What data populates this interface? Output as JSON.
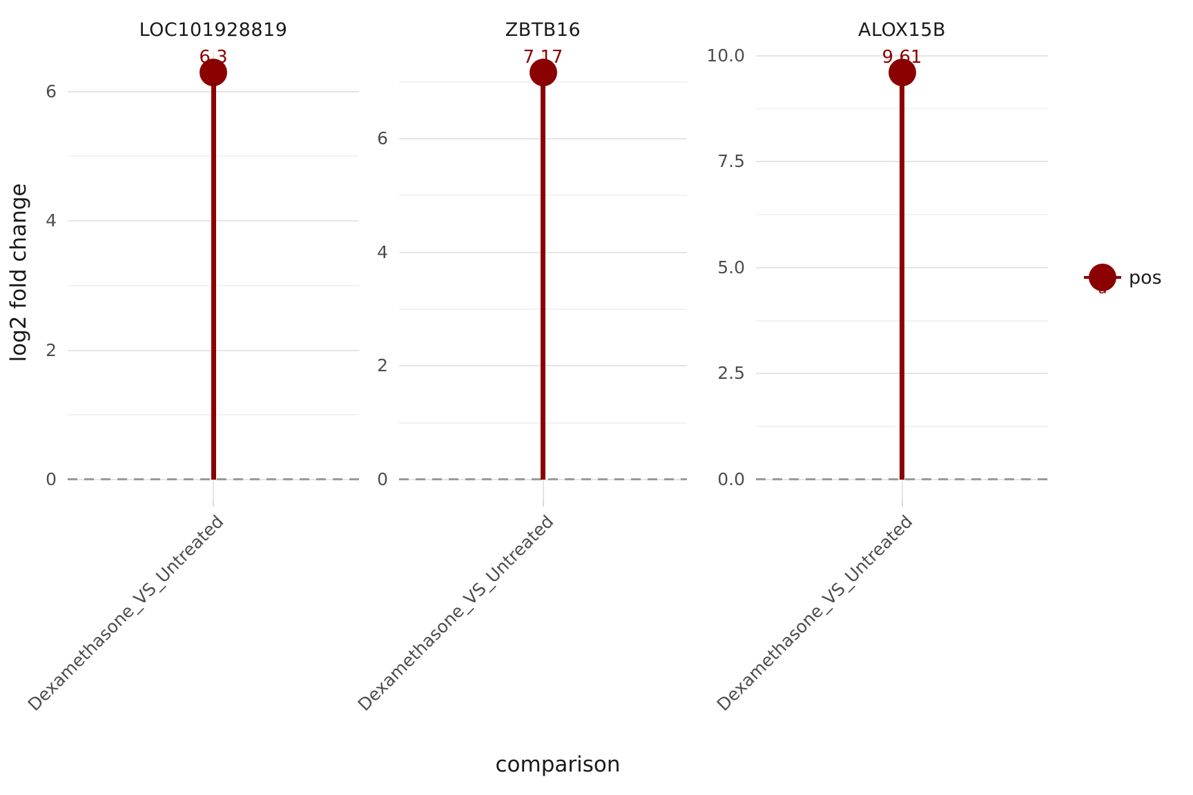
{
  "chart_data": {
    "type": "lollipop",
    "title": "",
    "xlabel": "comparison",
    "ylabel": "log2 fold change",
    "category_label": "Dexamethasone_VS_Untreated",
    "facets": [
      {
        "title": "LOC101928819",
        "value": 6.3,
        "value_label": "6.3",
        "yticks": [
          {
            "v": 0,
            "t": "0"
          },
          {
            "v": 2,
            "t": "2"
          },
          {
            "v": 4,
            "t": "4"
          },
          {
            "v": 6,
            "t": "6"
          }
        ]
      },
      {
        "title": "ZBTB16",
        "value": 7.17,
        "value_label": "7.17",
        "yticks": [
          {
            "v": 0,
            "t": "0"
          },
          {
            "v": 2,
            "t": "2"
          },
          {
            "v": 4,
            "t": "4"
          },
          {
            "v": 6,
            "t": "6"
          }
        ]
      },
      {
        "title": "ALOX15B",
        "value": 9.61,
        "value_label": "9.61",
        "yticks": [
          {
            "v": 0,
            "t": "0.0"
          },
          {
            "v": 2.5,
            "t": "2.5"
          },
          {
            "v": 5,
            "t": "5.0"
          },
          {
            "v": 7.5,
            "t": "7.5"
          },
          {
            "v": 10,
            "t": "10.0"
          }
        ]
      }
    ],
    "legend": {
      "label": "pos",
      "key_letter": "a",
      "position": "right"
    },
    "baseline": 0,
    "colors": {
      "accent": "#8B0000",
      "grid_major": "#E5E5E5",
      "grid_minor": "#F2F2F2",
      "zero_dash": "#9A9A9A",
      "axis_text": "#4D4D4D",
      "text": "#1A1A1A"
    },
    "layout_hints": {
      "grid": "on",
      "free_y": true,
      "x_tick_rotation": -45,
      "y_expand": 0.05,
      "legend_position": "right"
    }
  }
}
